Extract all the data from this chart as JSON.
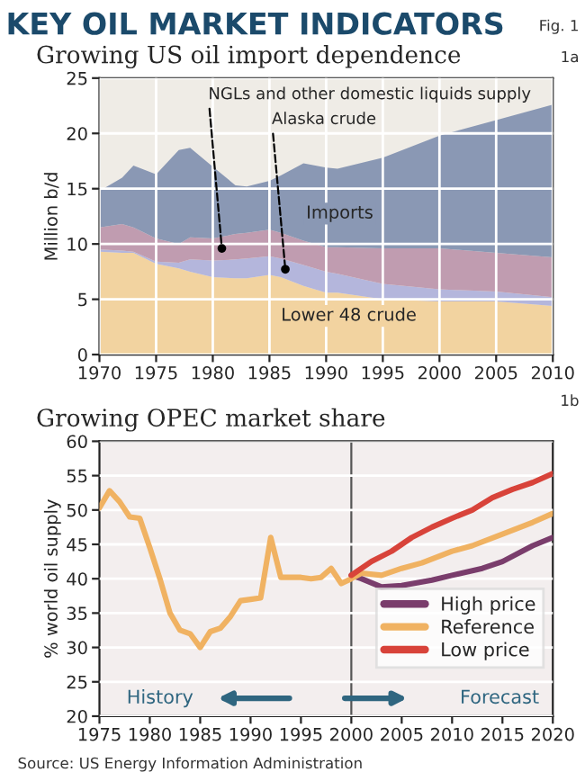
{
  "chart_data": [
    {
      "type": "area",
      "stacked": true,
      "title": "Growing US oil import dependence",
      "ylabel": "Million b/d",
      "x": [
        1970,
        1972,
        1973,
        1975,
        1977,
        1978,
        1980,
        1982,
        1983,
        1985,
        1986,
        1988,
        1990,
        1991,
        1995,
        2000,
        2005,
        2010
      ],
      "series": [
        {
          "name": "Lower 48 crude",
          "color": "#f2d3a0",
          "values": [
            9.3,
            9.2,
            9.2,
            8.2,
            7.8,
            7.5,
            7.0,
            6.9,
            6.9,
            7.2,
            7.0,
            6.2,
            5.6,
            5.6,
            5.0,
            4.8,
            4.8,
            4.4
          ]
        },
        {
          "name": "Alaska crude",
          "color": "#b4b6dc",
          "values": [
            0.2,
            0.2,
            0.1,
            0.2,
            0.5,
            1.1,
            1.5,
            1.7,
            1.8,
            1.7,
            1.7,
            1.9,
            1.9,
            1.7,
            1.4,
            1.1,
            0.9,
            0.8
          ]
        },
        {
          "name": "NGLs and other domestic liquids supply",
          "color": "#c09cb0",
          "values": [
            2.0,
            2.4,
            2.2,
            2.1,
            1.7,
            2.0,
            2.0,
            2.3,
            2.3,
            2.4,
            2.3,
            2.2,
            2.2,
            2.4,
            3.2,
            3.7,
            3.5,
            3.6
          ]
        },
        {
          "name": "Imports",
          "color": "#8a98b4",
          "values": [
            3.3,
            4.2,
            5.6,
            5.8,
            8.5,
            8.1,
            6.5,
            4.4,
            4.2,
            4.4,
            5.2,
            7.0,
            7.2,
            7.1,
            8.2,
            10.2,
            12.0,
            13.8
          ]
        }
      ],
      "xlim": [
        1970,
        2010
      ],
      "xticks": [
        1970,
        1975,
        1980,
        1985,
        1990,
        1995,
        2000,
        2005,
        2010
      ],
      "ylim": [
        0,
        25
      ],
      "yticks": [
        0,
        5,
        10,
        15,
        20,
        25
      ],
      "grid": true,
      "legend": false,
      "annotations": [
        "KEY OIL MARKET INDICATORS",
        "Fig. 1",
        "1a"
      ]
    },
    {
      "type": "line",
      "title": "Growing OPEC market share",
      "ylabel": "% world oil supply",
      "series": [
        {
          "name": "High price",
          "color": "#7a3d6c",
          "x": [
            2000,
            2001,
            2003,
            2005,
            2008,
            2010,
            2013,
            2015,
            2018,
            2020
          ],
          "values": [
            40.5,
            40,
            38.8,
            39,
            39.8,
            40.5,
            41.5,
            42.5,
            44.8,
            46
          ]
        },
        {
          "name": "Reference",
          "color": "#f0b262",
          "x": [
            1975,
            1976,
            1977,
            1978,
            1979,
            1980,
            1981,
            1982,
            1983,
            1984,
            1985,
            1986,
            1987,
            1988,
            1989,
            1990,
            1991,
            1992,
            1993,
            1994,
            1995,
            1996,
            1997,
            1998,
            1999,
            2000,
            2001,
            2003,
            2005,
            2007,
            2010,
            2012,
            2015,
            2018,
            2020
          ],
          "values": [
            50.3,
            52.8,
            51.2,
            49,
            48.8,
            44.5,
            40,
            35,
            32.5,
            32,
            30,
            32.3,
            32.8,
            34.5,
            36.8,
            37,
            37.2,
            46,
            40.2,
            40.2,
            40.2,
            40,
            40.2,
            41.5,
            39.3,
            40,
            40.8,
            40.5,
            41.5,
            42.3,
            44,
            44.8,
            46.5,
            48.2,
            49.5
          ]
        },
        {
          "name": "Low price",
          "color": "#d8433a",
          "x": [
            2000,
            2002,
            2004,
            2006,
            2008,
            2010,
            2012,
            2014,
            2016,
            2018,
            2020
          ],
          "values": [
            40.5,
            42.5,
            44,
            46,
            47.5,
            48.8,
            50,
            51.8,
            53,
            54,
            55.3
          ]
        }
      ],
      "xlim": [
        1975,
        2020
      ],
      "xticks": [
        1975,
        1980,
        1985,
        1990,
        1995,
        2000,
        2005,
        2010,
        2015,
        2020
      ],
      "ylim": [
        20,
        60
      ],
      "yticks": [
        20,
        25,
        30,
        35,
        40,
        45,
        50,
        55,
        60
      ],
      "grid": "y",
      "legend": "right",
      "ref_lines": [
        {
          "axis": "x",
          "value": 2000,
          "color": "#555555"
        }
      ],
      "annotations": [
        "1b",
        "History",
        "Forecast",
        "Source: US Energy Information Administration"
      ]
    }
  ]
}
